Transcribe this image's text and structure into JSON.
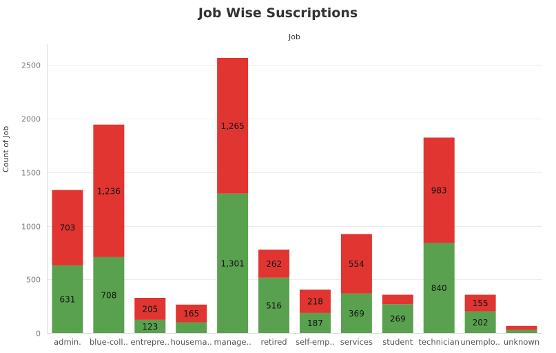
{
  "chart_data": {
    "type": "bar",
    "stacked": true,
    "title": "Job Wise Suscriptions",
    "x_header": "Job",
    "ylabel": "Count of Job",
    "ylim": [
      0,
      2600
    ],
    "yticks": [
      0,
      500,
      1000,
      1500,
      2000,
      2500
    ],
    "categories": [
      "admin.",
      "blue-coll..",
      "entrepre..",
      "housema..",
      "manage..",
      "retired",
      "self-emp..",
      "services",
      "student",
      "technician",
      "unemplo..",
      "unknown"
    ],
    "series": [
      {
        "color": "#59a14f",
        "values": [
          631,
          708,
          123,
          100,
          1301,
          516,
          187,
          369,
          269,
          840,
          202,
          28
        ],
        "labels": [
          "631",
          "708",
          "123",
          "",
          "1,301",
          "516",
          "187",
          "369",
          "269",
          "840",
          "202",
          ""
        ]
      },
      {
        "color": "#e03531",
        "values": [
          703,
          1236,
          205,
          165,
          1265,
          262,
          218,
          554,
          88,
          983,
          155,
          38
        ],
        "labels": [
          "703",
          "1,236",
          "205",
          "165",
          "1,265",
          "262",
          "218",
          "554",
          "",
          "983",
          "155",
          ""
        ]
      }
    ],
    "grid": true,
    "legend": "none"
  }
}
